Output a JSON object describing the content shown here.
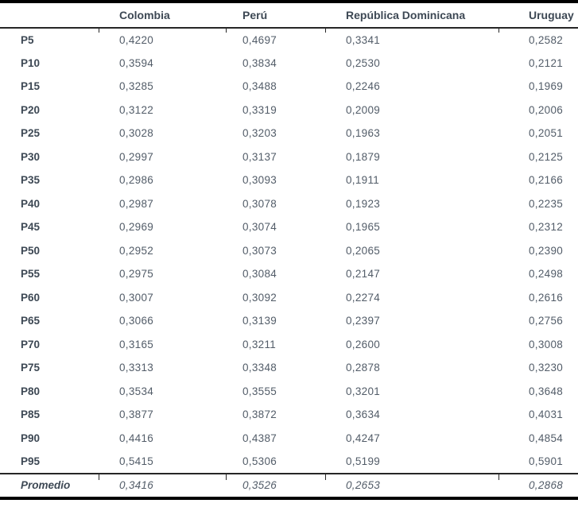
{
  "table": {
    "columns": [
      "",
      "Colombia",
      "Perú",
      "República Dominicana",
      "Uruguay"
    ],
    "rows": [
      {
        "label": "P5",
        "values": [
          "0,4220",
          "0,4697",
          "0,3341",
          "0,2582"
        ]
      },
      {
        "label": "P10",
        "values": [
          "0,3594",
          "0,3834",
          "0,2530",
          "0,2121"
        ]
      },
      {
        "label": "P15",
        "values": [
          "0,3285",
          "0,3488",
          "0,2246",
          "0,1969"
        ]
      },
      {
        "label": "P20",
        "values": [
          "0,3122",
          "0,3319",
          "0,2009",
          "0,2006"
        ]
      },
      {
        "label": "P25",
        "values": [
          "0,3028",
          "0,3203",
          "0,1963",
          "0,2051"
        ]
      },
      {
        "label": "P30",
        "values": [
          "0,2997",
          "0,3137",
          "0,1879",
          "0,2125"
        ]
      },
      {
        "label": "P35",
        "values": [
          "0,2986",
          "0,3093",
          "0,1911",
          "0,2166"
        ]
      },
      {
        "label": "P40",
        "values": [
          "0,2987",
          "0,3078",
          "0,1923",
          "0,2235"
        ]
      },
      {
        "label": "P45",
        "values": [
          "0,2969",
          "0,3074",
          "0,1965",
          "0,2312"
        ]
      },
      {
        "label": "P50",
        "values": [
          "0,2952",
          "0,3073",
          "0,2065",
          "0,2390"
        ]
      },
      {
        "label": "P55",
        "values": [
          "0,2975",
          "0,3084",
          "0,2147",
          "0,2498"
        ]
      },
      {
        "label": "P60",
        "values": [
          "0,3007",
          "0,3092",
          "0,2274",
          "0,2616"
        ]
      },
      {
        "label": "P65",
        "values": [
          "0,3066",
          "0,3139",
          "0,2397",
          "0,2756"
        ]
      },
      {
        "label": "P70",
        "values": [
          "0,3165",
          "0,3211",
          "0,2600",
          "0,3008"
        ]
      },
      {
        "label": "P75",
        "values": [
          "0,3313",
          "0,3348",
          "0,2878",
          "0,3230"
        ]
      },
      {
        "label": "P80",
        "values": [
          "0,3534",
          "0,3555",
          "0,3201",
          "0,3648"
        ]
      },
      {
        "label": "P85",
        "values": [
          "0,3877",
          "0,3872",
          "0,3634",
          "0,4031"
        ]
      },
      {
        "label": "P90",
        "values": [
          "0,4416",
          "0,4387",
          "0,4247",
          "0,4854"
        ]
      },
      {
        "label": "P95",
        "values": [
          "0,5415",
          "0,5306",
          "0,5199",
          "0,5901"
        ]
      }
    ],
    "footer": {
      "label": "Promedio",
      "values": [
        "0,3416",
        "0,3526",
        "0,2653",
        "0,2868"
      ]
    }
  },
  "colors": {
    "header_text": "#3d4854",
    "value_text": "#525c68",
    "border_heavy": "#000000",
    "border_rule": "#262626",
    "background": "#ffffff"
  }
}
